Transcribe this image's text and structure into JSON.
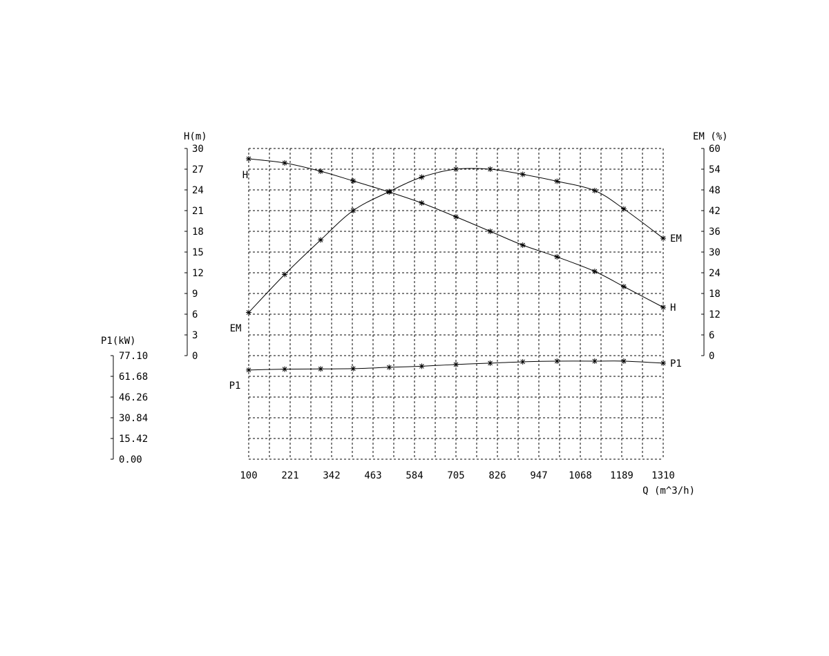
{
  "chart_data": {
    "type": "line",
    "x": {
      "label": "Q (m^3/h)",
      "ticks": [
        "100",
        "221",
        "342",
        "463",
        "584",
        "705",
        "826",
        "947",
        "1068",
        "1189",
        "1310"
      ],
      "range": [
        100,
        1310
      ]
    },
    "axes": {
      "H": {
        "label": "H(m)",
        "ticks": [
          "0",
          "3",
          "6",
          "9",
          "12",
          "15",
          "18",
          "21",
          "24",
          "27",
          "30"
        ],
        "range": [
          0,
          30
        ]
      },
      "EM": {
        "label": "EM (%)",
        "ticks": [
          "0",
          "6",
          "12",
          "18",
          "24",
          "30",
          "36",
          "42",
          "48",
          "54",
          "60"
        ],
        "range": [
          0,
          60
        ]
      },
      "P1": {
        "label": "P1(kW)",
        "ticks": [
          "0.00",
          "15.42",
          "30.84",
          "46.26",
          "61.68",
          "77.10"
        ],
        "range": [
          0,
          77.1
        ]
      }
    },
    "grid": true,
    "series": [
      {
        "name": "H",
        "axis": "H",
        "end_label": "H",
        "points": [
          [
            100,
            28.5
          ],
          [
            205,
            27.9
          ],
          [
            310,
            26.7
          ],
          [
            405,
            25.3
          ],
          [
            510,
            23.7
          ],
          [
            605,
            22.1
          ],
          [
            705,
            20.1
          ],
          [
            805,
            18.0
          ],
          [
            900,
            16.0
          ],
          [
            1000,
            14.3
          ],
          [
            1110,
            12.2
          ],
          [
            1195,
            10.0
          ],
          [
            1310,
            7.0
          ]
        ]
      },
      {
        "name": "EM",
        "axis": "EM",
        "end_label": "EM",
        "points": [
          [
            100,
            12.5
          ],
          [
            205,
            23.5
          ],
          [
            310,
            33.5
          ],
          [
            405,
            42
          ],
          [
            510,
            47.5
          ],
          [
            605,
            51.7
          ],
          [
            705,
            54
          ],
          [
            805,
            54
          ],
          [
            900,
            52.5
          ],
          [
            1000,
            50.5
          ],
          [
            1110,
            47.8
          ],
          [
            1195,
            42.5
          ],
          [
            1310,
            34
          ]
        ]
      },
      {
        "name": "P1",
        "axis": "P1",
        "end_label": "P1",
        "points": [
          [
            100,
            66.4
          ],
          [
            205,
            67.0
          ],
          [
            310,
            67.2
          ],
          [
            405,
            67.4
          ],
          [
            510,
            68.4
          ],
          [
            605,
            69.2
          ],
          [
            705,
            70.5
          ],
          [
            805,
            71.5
          ],
          [
            900,
            72.5
          ],
          [
            1000,
            73.0
          ],
          [
            1110,
            73.0
          ],
          [
            1195,
            73.0
          ],
          [
            1310,
            71.5
          ]
        ]
      }
    ]
  }
}
